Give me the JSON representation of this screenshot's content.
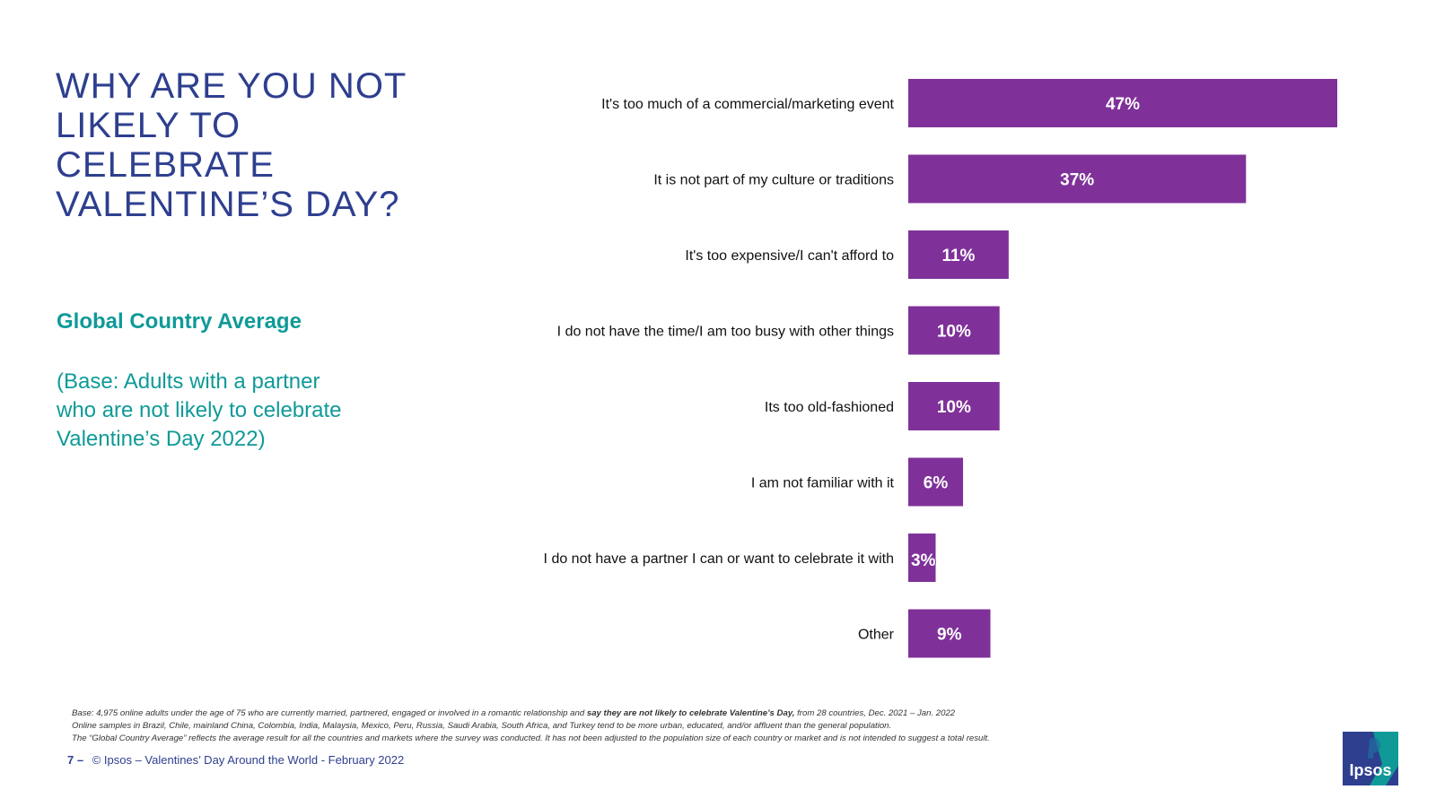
{
  "title": "WHY ARE YOU NOT\nLIKELY TO\nCELEBRATE\nVALENTINE’S DAY?",
  "subtitle": "Global Country Average",
  "base_note": "(Base: Adults with a partner\nwho are not likely to celebrate\nValentine’s Day 2022)",
  "chart_data": {
    "type": "bar",
    "orientation": "horizontal",
    "categories": [
      "It's too much of a commercial/marketing event",
      "It is not part of my culture or traditions",
      "It's too expensive/I can't afford to",
      "I do not have the time/I am too busy with other things",
      "Its too old-fashioned",
      "I am not familiar with it",
      "I do not have a partner I can or want to celebrate it with",
      "Other"
    ],
    "values": [
      47,
      37,
      11,
      10,
      10,
      6,
      3,
      9
    ],
    "data_labels": [
      "47%",
      "37%",
      "11%",
      "10%",
      "10%",
      "6%",
      "3%",
      "9%"
    ],
    "xlim": [
      0,
      47
    ],
    "bar_color": "#7f3199",
    "grid": false
  },
  "footnotes": {
    "line1_pre": "Base: 4,975 online adults under the age of 75 who are currently married, partnered, engaged or involved in a romantic relationship and ",
    "line1_bold": "say they are not likely to celebrate Valentine’s Day,",
    "line1_post": " from 28 countries, Dec. 2021 – Jan. 2022",
    "line2": "Online samples in Brazil, Chile, mainland China, Colombia, India, Malaysia, Mexico, Peru, Russia, Saudi Arabia, South Africa, and Turkey tend to be more urban, educated, and/or affluent than the general population.",
    "line3": "The “Global Country Average” reflects the average result for all the countries and markets where the survey was conducted. It has not been adjusted to the population size of each country or market and is not intended to suggest a total result."
  },
  "footer": {
    "page_number": "7 –",
    "text": "© Ipsos – Valentines’ Day Around the World - February 2022"
  },
  "logo": {
    "text": "Ipsos",
    "colors": [
      "#2e3f8f",
      "#0f9a98"
    ]
  },
  "colors": {
    "title": "#2e3f8f",
    "accent": "#0f9a98",
    "bar": "#7f3199"
  }
}
